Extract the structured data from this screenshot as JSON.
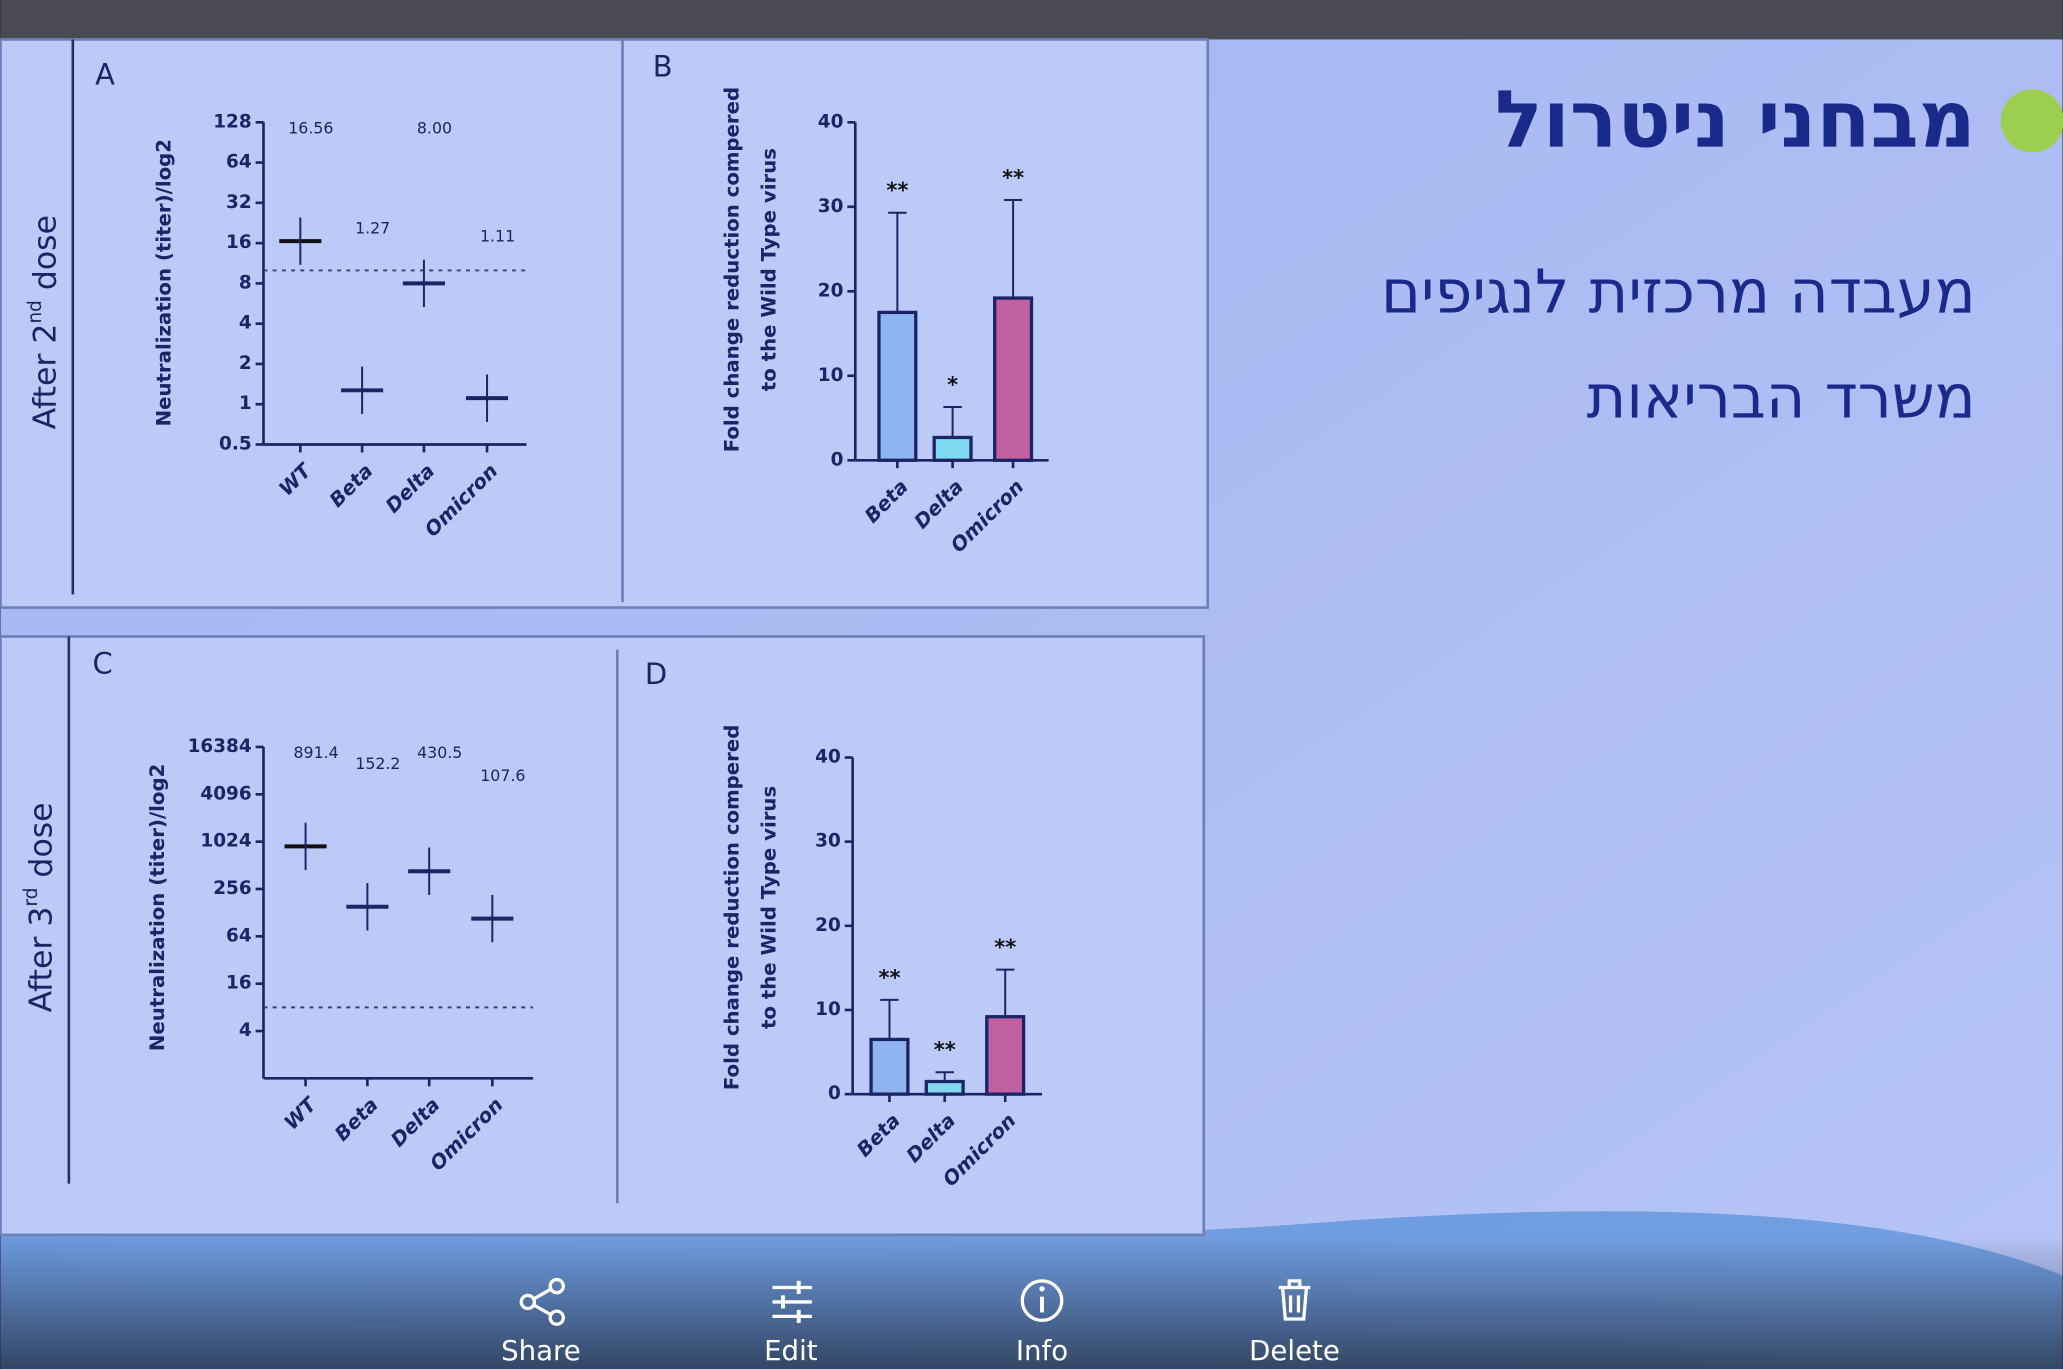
{
  "slide": {
    "title": "מבחני ניטרול",
    "lines": [
      "מעבדה מרכזית לנגיפים",
      "משרד הבריאות"
    ]
  },
  "row_labels": [
    [
      "After 2",
      "nd",
      " dose"
    ],
    [
      "After 3",
      "rd",
      " dose"
    ]
  ],
  "toolbar": [
    "Share",
    "Edit",
    "Info",
    "Delete"
  ],
  "chart_data": [
    {
      "type": "dotplot",
      "panel_label": "A",
      "y_label": [
        "Neutralization (titer)/log2"
      ],
      "categories": [
        "WT",
        "Beta",
        "Delta",
        "Omicron"
      ],
      "values": [
        16.56,
        1.27,
        8.0,
        1.11
      ],
      "value_labels": [
        "16.56",
        "1.27",
        "8.00",
        "1.11"
      ],
      "colors": [
        "#111111",
        "#8fb0f0",
        "#7fd6f2",
        "#b0559a"
      ],
      "yscale": "log",
      "ylim": [
        0.5,
        128
      ],
      "yticks": [
        0.5,
        1,
        2,
        4,
        8,
        16,
        32,
        64,
        128
      ],
      "threshold": 10
    },
    {
      "type": "bar",
      "panel_label": "B",
      "y_label": [
        "Fold change reduction compered",
        "to the Wild Type virus"
      ],
      "categories": [
        "Beta",
        "Delta",
        "Omicron"
      ],
      "values": [
        17.5,
        2.7,
        19.2
      ],
      "errors": [
        11.8,
        3.6,
        11.6
      ],
      "annotations": [
        "**",
        "*",
        "**"
      ],
      "colors": [
        "#8fb4f0",
        "#7fd8f0",
        "#c060a0"
      ],
      "ylim": [
        0,
        40
      ],
      "yticks": [
        0,
        10,
        20,
        30,
        40
      ]
    },
    {
      "type": "dotplot",
      "panel_label": "C",
      "y_label": [
        "Neutralization (titer)/log2"
      ],
      "categories": [
        "WT",
        "Beta",
        "Delta",
        "Omicron"
      ],
      "values": [
        891.4,
        152.2,
        430.5,
        107.6
      ],
      "colors": [
        "#111111",
        "#8fb0f0",
        "#7fd6f2",
        "#b0559a"
      ],
      "yscale": "log",
      "ylim": [
        1,
        16384
      ],
      "yticks": [
        4,
        16,
        64,
        256,
        1024,
        4096,
        16384
      ],
      "threshold": 8
    },
    {
      "type": "bar",
      "panel_label": "D",
      "y_label": [
        "Fold change reduction compered",
        "to the Wild Type virus"
      ],
      "categories": [
        "Beta",
        "Delta",
        "Omicron"
      ],
      "values": [
        6.5,
        1.5,
        9.2
      ],
      "errors": [
        4.7,
        1.1,
        5.6
      ],
      "annotations": [
        "**",
        "**",
        "**"
      ],
      "colors": [
        "#8fb4f0",
        "#7fd8f0",
        "#c060a0"
      ],
      "ylim": [
        0,
        40
      ],
      "yticks": [
        0,
        10,
        20,
        30,
        40
      ]
    }
  ]
}
